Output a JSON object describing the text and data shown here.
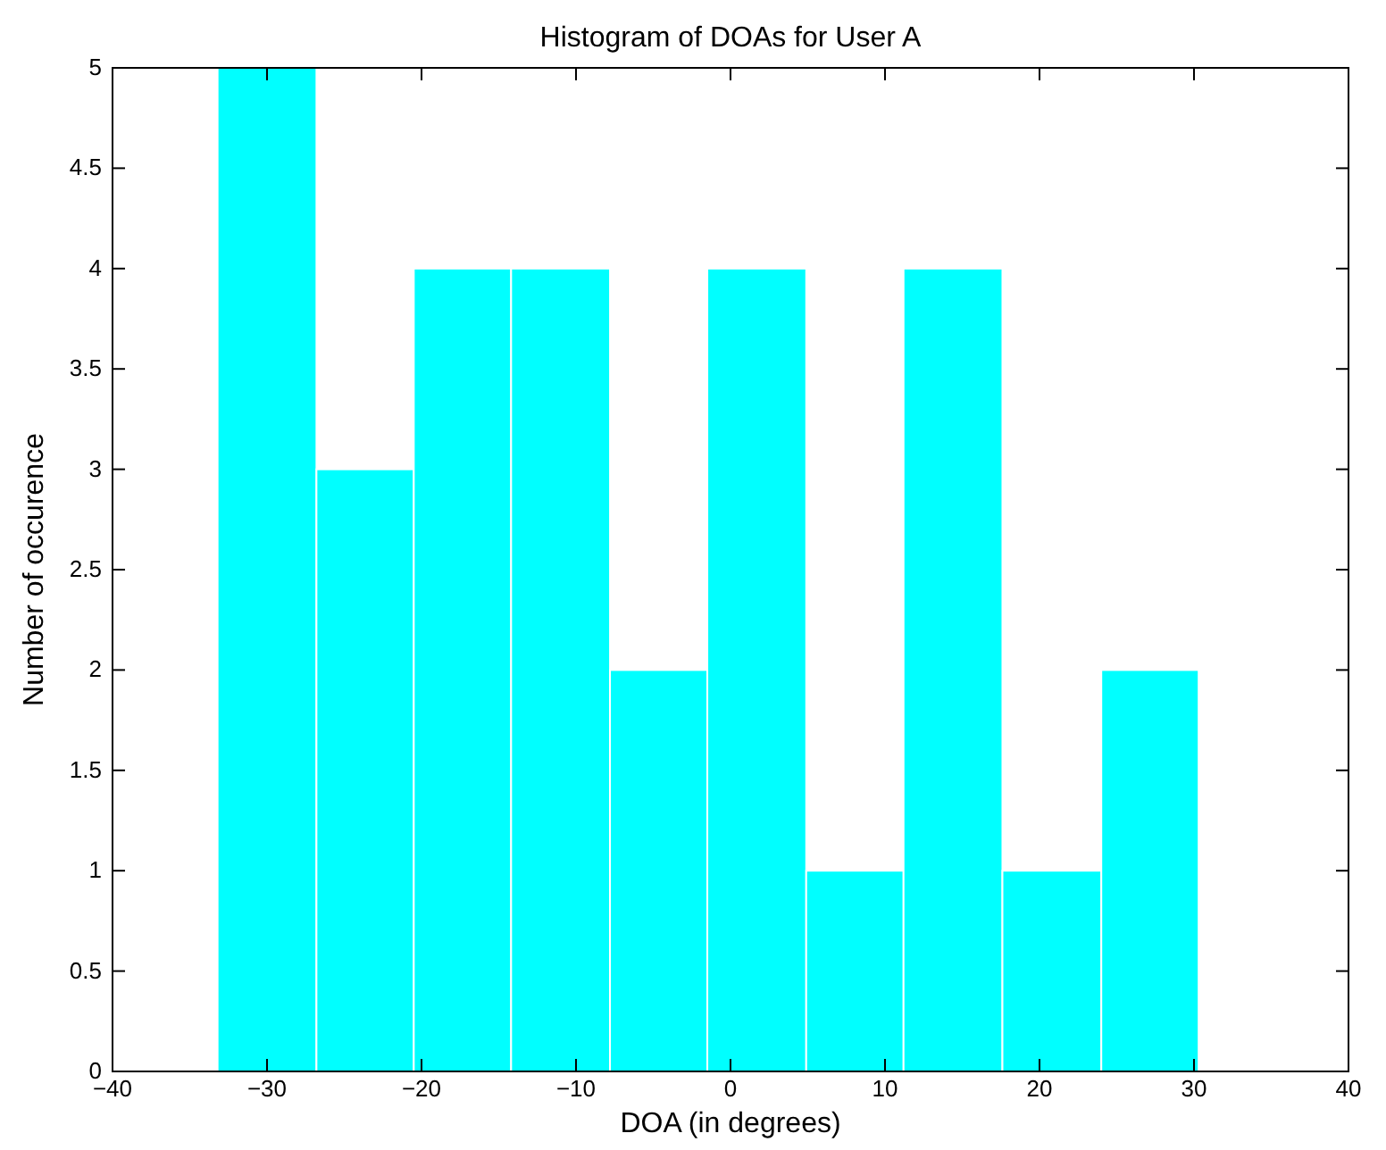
{
  "chart_data": {
    "type": "histogram",
    "title": "Histogram of DOAs for User A",
    "xlabel": "DOA (in degrees)",
    "ylabel": "Number of occurence",
    "bins": [
      -33.2,
      -26.8,
      -20.5,
      -14.2,
      -7.8,
      -1.5,
      4.9,
      11.2,
      17.6,
      24.0,
      30.3
    ],
    "values": [
      5,
      3,
      4,
      4,
      2,
      4,
      1,
      4,
      1,
      2
    ],
    "color": "#00ffff",
    "xlim": [
      -40,
      40
    ],
    "xticks": [
      {
        "value": -40,
        "label": "−40"
      },
      {
        "value": -30,
        "label": "−30"
      },
      {
        "value": -20,
        "label": "−20"
      },
      {
        "value": -10,
        "label": "−10"
      },
      0,
      10,
      20,
      30,
      40
    ],
    "ylim": [
      0,
      5
    ],
    "yticks": [
      0,
      0.5,
      1,
      1.5,
      2,
      2.5,
      3,
      3.5,
      4,
      4.5,
      5
    ],
    "grid": false
  }
}
